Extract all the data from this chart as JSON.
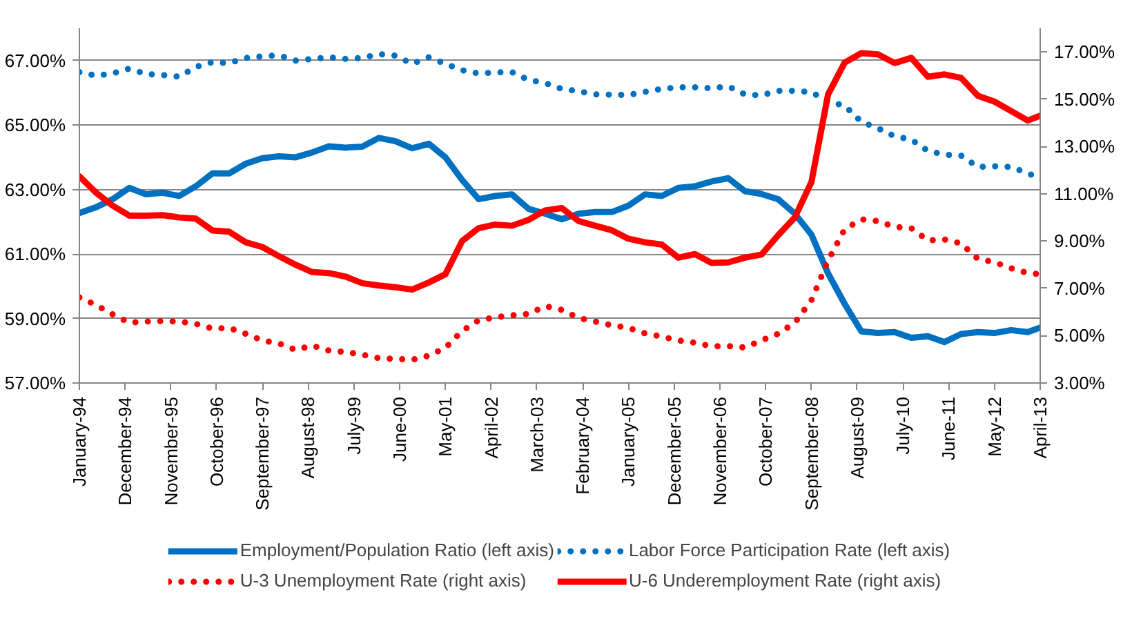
{
  "chart_data": {
    "type": "line",
    "x": [
      "1994-01",
      "1994-05",
      "1994-09",
      "1995-01",
      "1995-05",
      "1995-09",
      "1996-01",
      "1996-05",
      "1996-09",
      "1997-01",
      "1997-05",
      "1997-09",
      "1998-01",
      "1998-05",
      "1998-09",
      "1999-01",
      "1999-05",
      "1999-09",
      "2000-01",
      "2000-05",
      "2000-09",
      "2001-01",
      "2001-05",
      "2001-09",
      "2002-01",
      "2002-05",
      "2002-09",
      "2003-01",
      "2003-05",
      "2003-09",
      "2004-01",
      "2004-05",
      "2004-09",
      "2005-01",
      "2005-05",
      "2005-09",
      "2006-01",
      "2006-05",
      "2006-09",
      "2007-01",
      "2007-05",
      "2007-09",
      "2008-01",
      "2008-05",
      "2008-09",
      "2009-01",
      "2009-05",
      "2009-09",
      "2010-01",
      "2010-05",
      "2010-09",
      "2011-01",
      "2011-05",
      "2011-09",
      "2012-01",
      "2012-05",
      "2012-09",
      "2013-01",
      "2013-04"
    ],
    "xlim": [
      "1994-01",
      "2013-04"
    ],
    "xticks": [
      {
        "value": "1994-01",
        "label": "January-94"
      },
      {
        "value": "1994-12",
        "label": "December-94"
      },
      {
        "value": "1995-11",
        "label": "November-95"
      },
      {
        "value": "1996-10",
        "label": "October-96"
      },
      {
        "value": "1997-09",
        "label": "September-97"
      },
      {
        "value": "1998-08",
        "label": "August-98"
      },
      {
        "value": "1999-07",
        "label": "July-99"
      },
      {
        "value": "2000-06",
        "label": "June-00"
      },
      {
        "value": "2001-05",
        "label": "May-01"
      },
      {
        "value": "2002-04",
        "label": "April-02"
      },
      {
        "value": "2003-03",
        "label": "March-03"
      },
      {
        "value": "2004-02",
        "label": "February-04"
      },
      {
        "value": "2005-01",
        "label": "January-05"
      },
      {
        "value": "2005-12",
        "label": "December-05"
      },
      {
        "value": "2006-11",
        "label": "November-06"
      },
      {
        "value": "2007-10",
        "label": "October-07"
      },
      {
        "value": "2008-09",
        "label": "September-08"
      },
      {
        "value": "2009-08",
        "label": "August-09"
      },
      {
        "value": "2010-07",
        "label": "July-10"
      },
      {
        "value": "2011-06",
        "label": "June-11"
      },
      {
        "value": "2012-05",
        "label": "May-12"
      },
      {
        "value": "2013-04",
        "label": "April-13"
      }
    ],
    "ylim": [
      57,
      68
    ],
    "yticks": [
      {
        "value": 57,
        "label": "57.00%"
      },
      {
        "value": 59,
        "label": "59.00%"
      },
      {
        "value": 61,
        "label": "61.00%"
      },
      {
        "value": 63,
        "label": "63.00%"
      },
      {
        "value": 65,
        "label": "65.00%"
      },
      {
        "value": 67,
        "label": "67.00%"
      }
    ],
    "y2lim": [
      3,
      18
    ],
    "y2ticks": [
      {
        "value": 3,
        "label": "3.00%"
      },
      {
        "value": 5,
        "label": "5.00%"
      },
      {
        "value": 7,
        "label": "7.00%"
      },
      {
        "value": 9,
        "label": "9.00%"
      },
      {
        "value": 11,
        "label": "11.00%"
      },
      {
        "value": 13,
        "label": "13.00%"
      },
      {
        "value": 15,
        "label": "15.00%"
      },
      {
        "value": 17,
        "label": "17.00%"
      }
    ],
    "grid": "y",
    "legend": "bottom",
    "series": [
      {
        "name": "Employment/Population Ratio (left axis)",
        "color": "#0070c0",
        "line_style": "solid",
        "values": [
          62.27,
          62.45,
          62.7,
          63.05,
          62.85,
          62.9,
          62.8,
          63.1,
          63.5,
          63.5,
          63.8,
          63.97,
          64.03,
          64.0,
          64.15,
          64.34,
          64.3,
          64.33,
          64.6,
          64.5,
          64.28,
          64.42,
          64.0,
          63.3,
          62.7,
          62.8,
          62.85,
          62.4,
          62.25,
          62.08,
          62.25,
          62.3,
          62.3,
          62.5,
          62.85,
          62.8,
          63.05,
          63.1,
          63.25,
          63.35,
          62.95,
          62.86,
          62.7,
          62.25,
          61.6,
          60.4,
          59.45,
          58.6,
          58.55,
          58.58,
          58.4,
          58.45,
          58.27,
          58.52,
          58.58,
          58.55,
          58.64,
          58.58,
          58.72
        ]
      },
      {
        "name": "Labor Force Participation Rate (left axis)",
        "color": "#0070c0",
        "line_style": "dotted",
        "values": [
          66.64,
          66.53,
          66.6,
          66.75,
          66.58,
          66.55,
          66.5,
          66.8,
          66.95,
          66.92,
          67.08,
          67.13,
          67.16,
          67.0,
          67.05,
          67.1,
          67.05,
          67.08,
          67.2,
          67.15,
          66.9,
          67.1,
          66.9,
          66.7,
          66.6,
          66.63,
          66.64,
          66.4,
          66.3,
          66.12,
          66.05,
          65.95,
          65.94,
          65.93,
          66.03,
          66.12,
          66.17,
          66.17,
          66.14,
          66.2,
          65.95,
          65.92,
          66.06,
          66.06,
          66.02,
          65.73,
          65.6,
          65.1,
          64.9,
          64.65,
          64.55,
          64.2,
          64.08,
          64.05,
          63.7,
          63.72,
          63.7,
          63.5,
          63.36
        ]
      },
      {
        "name": "U-3 Unemployment Rate (right axis)",
        "color": "#ff0000",
        "line_style": "dotted",
        "axis": "y2",
        "values": [
          6.62,
          6.3,
          5.9,
          5.55,
          5.6,
          5.62,
          5.6,
          5.5,
          5.3,
          5.33,
          5.08,
          4.8,
          4.67,
          4.4,
          4.58,
          4.37,
          4.31,
          4.2,
          4.05,
          4.02,
          3.98,
          4.15,
          4.49,
          5.2,
          5.65,
          5.78,
          5.86,
          5.92,
          6.25,
          6.09,
          5.75,
          5.6,
          5.44,
          5.33,
          5.1,
          4.96,
          4.8,
          4.7,
          4.55,
          4.56,
          4.5,
          4.8,
          5.08,
          5.55,
          6.5,
          8.18,
          9.5,
          9.92,
          9.85,
          9.6,
          9.55,
          9.03,
          9.07,
          8.9,
          8.25,
          8.11,
          7.85,
          7.65,
          7.6
        ]
      },
      {
        "name": "U-6 Underemployment Rate (right axis)",
        "color": "#ff0000",
        "line_style": "solid",
        "axis": "y2",
        "values": [
          11.74,
          11.05,
          10.5,
          10.08,
          10.08,
          10.1,
          10.0,
          9.95,
          9.45,
          9.4,
          8.95,
          8.75,
          8.36,
          8.0,
          7.69,
          7.65,
          7.5,
          7.22,
          7.12,
          7.05,
          6.95,
          7.25,
          7.6,
          9.0,
          9.55,
          9.7,
          9.65,
          9.9,
          10.3,
          10.4,
          9.85,
          9.65,
          9.46,
          9.1,
          8.95,
          8.86,
          8.3,
          8.45,
          8.08,
          8.1,
          8.3,
          8.43,
          9.25,
          10.0,
          11.5,
          15.2,
          16.55,
          16.95,
          16.9,
          16.53,
          16.75,
          15.95,
          16.05,
          15.9,
          15.15,
          14.9,
          14.5,
          14.1,
          14.3
        ]
      }
    ]
  }
}
